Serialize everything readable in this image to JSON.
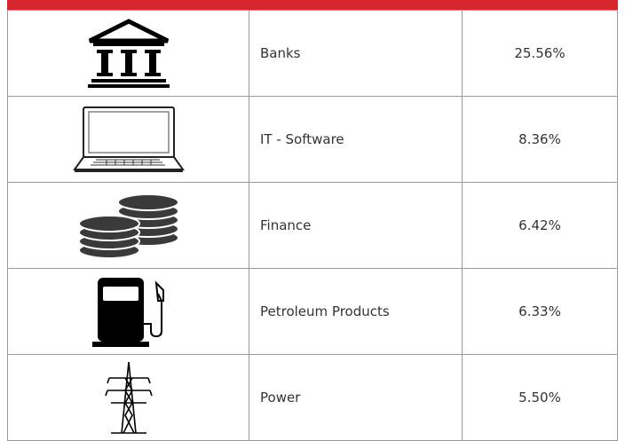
{
  "table": {
    "rows": [
      [
        "Banks",
        "25.56%"
      ],
      [
        "IT - Software",
        "8.36%"
      ],
      [
        "Finance",
        "6.42%"
      ],
      [
        "Petroleum Products",
        "6.33%"
      ],
      [
        "Power",
        "5.50%"
      ]
    ]
  }
}
